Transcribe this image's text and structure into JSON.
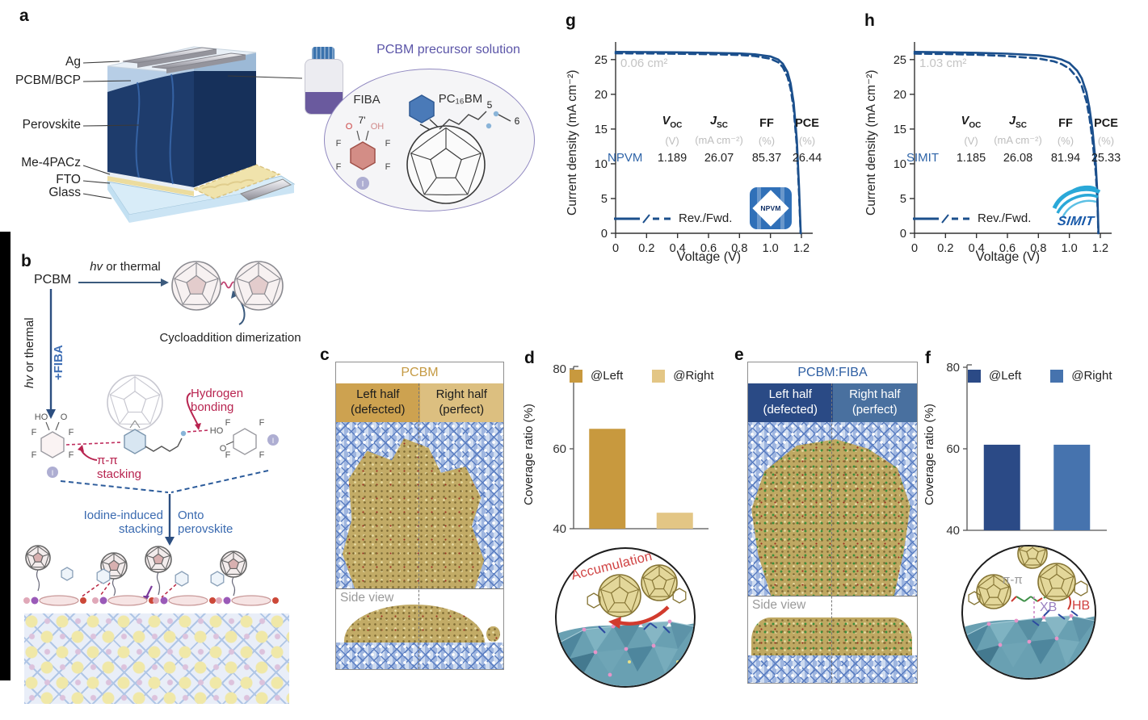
{
  "panels": {
    "a": "a",
    "b": "b",
    "c": "c",
    "d": "d",
    "e": "e",
    "f": "f",
    "g": "g",
    "h": "h"
  },
  "panel_a": {
    "layers": [
      "Ag",
      "PCBM/BCP",
      "Perovskite",
      "Me-4PACz",
      "FTO",
      "Glass"
    ],
    "solution_title": "PCBM precursor solution",
    "fiba": "FIBA",
    "pcbm": "PC₁₆BM",
    "n5": "5",
    "n6": "6",
    "n7": "7'",
    "oh": "OH",
    "o": "O",
    "f": "F",
    "i": "I"
  },
  "panel_b": {
    "pcbm": "PCBM",
    "hv": "hv",
    "hv_rest": " or thermal",
    "plus_fiba": "+FIBA",
    "cycloaddition": "Cycloaddition dimerization",
    "hydrogen_bonding": "Hydrogen bonding",
    "pi_stacking": "π-π stacking",
    "iodine_stacking": "Iodine-induced stacking",
    "onto_perovskite": "Onto perovskite",
    "ho": "HO",
    "o": "O",
    "f": "F",
    "i": "I"
  },
  "panel_c": {
    "title": "PCBM",
    "left_line1": "Left half",
    "left_line2": "(defected)",
    "right_line1": "Right half",
    "right_line2": "(perfect)",
    "side_view": "Side view"
  },
  "panel_e": {
    "title": "PCBM:FIBA",
    "left_line1": "Left half",
    "left_line2": "(defected)",
    "right_line1": "Right half",
    "right_line2": "(perfect)",
    "side_view": "Side view"
  },
  "insets": {
    "accumulation": "Accumulation",
    "pi_pi": "π-π",
    "xb": "XB",
    "hb": "HB"
  },
  "chart_data": [
    {
      "id": "d",
      "type": "bar",
      "panel": "d",
      "ylabel": "Coverage ratio (%)",
      "ylim": [
        40,
        80
      ],
      "yticks": [
        40,
        60,
        80
      ],
      "categories": [
        "@Left",
        "@Right"
      ],
      "values": [
        65,
        44
      ],
      "colors": [
        "#C8993E",
        "#E3C685"
      ],
      "legend_position": "top"
    },
    {
      "id": "f",
      "type": "bar",
      "panel": "f",
      "ylabel": "Coverage ratio (%)",
      "ylim": [
        40,
        80
      ],
      "yticks": [
        40,
        60,
        80
      ],
      "categories": [
        "@Left",
        "@Right"
      ],
      "values": [
        61,
        61
      ],
      "colors": [
        "#2B4A86",
        "#4673AE"
      ],
      "legend_position": "top"
    },
    {
      "id": "g",
      "type": "line",
      "panel": "g",
      "xlabel": "Voltage (V)",
      "ylabel": "Current density (mA cm⁻²)",
      "area_label": "0.06 cm²",
      "legend_label": "Rev./Fwd.",
      "device": "NPVM",
      "color": "#1B4F8C",
      "xlim": [
        0,
        1.2
      ],
      "ylim": [
        0,
        27.3
      ],
      "xticks": [
        "0",
        "0.2",
        "0.4",
        "0.6",
        "0.8",
        "1.0",
        "1.2"
      ],
      "yticks": [
        0,
        5,
        10,
        15,
        20,
        25
      ],
      "table_headers": {
        "voc_m": "V",
        "voc_s": "OC",
        "jsc_m": "J",
        "jsc_s": "SC",
        "ff": "FF",
        "pce": "PCE"
      },
      "table_units": {
        "v": "(V)",
        "j": "(mA cm⁻²)",
        "pct": "(%)"
      },
      "metrics": {
        "voc": "1.189",
        "jsc": "26.07",
        "ff": "85.37",
        "pce": "26.44"
      },
      "series": [
        {
          "name": "Rev.",
          "style": "solid",
          "points": [
            [
              0,
              26.1
            ],
            [
              0.2,
              26.08
            ],
            [
              0.4,
              26.04
            ],
            [
              0.6,
              25.98
            ],
            [
              0.8,
              25.88
            ],
            [
              0.9,
              25.75
            ],
            [
              1.0,
              25.45
            ],
            [
              1.05,
              25.0
            ],
            [
              1.08,
              24.4
            ],
            [
              1.11,
              23.2
            ],
            [
              1.13,
              21.6
            ],
            [
              1.15,
              18.8
            ],
            [
              1.17,
              13.5
            ],
            [
              1.185,
              6.5
            ],
            [
              1.192,
              2.0
            ],
            [
              1.196,
              0
            ]
          ]
        },
        {
          "name": "Fwd.",
          "style": "dashed",
          "points": [
            [
              0,
              25.9
            ],
            [
              0.2,
              25.88
            ],
            [
              0.4,
              25.84
            ],
            [
              0.6,
              25.78
            ],
            [
              0.8,
              25.66
            ],
            [
              0.9,
              25.5
            ],
            [
              1.0,
              25.12
            ],
            [
              1.05,
              24.6
            ],
            [
              1.08,
              23.9
            ],
            [
              1.11,
              22.5
            ],
            [
              1.13,
              20.8
            ],
            [
              1.15,
              17.9
            ],
            [
              1.17,
              12.6
            ],
            [
              1.185,
              5.6
            ],
            [
              1.192,
              1.5
            ],
            [
              1.195,
              0
            ]
          ]
        }
      ]
    },
    {
      "id": "h",
      "type": "line",
      "panel": "h",
      "xlabel": "Voltage (V)",
      "ylabel": "Current density (mA cm⁻²)",
      "area_label": "1.03 cm²",
      "legend_label": "Rev./Fwd.",
      "device": "SIMIT",
      "color": "#1B4F8C",
      "xlim": [
        0,
        1.2
      ],
      "ylim": [
        0,
        27.3
      ],
      "xticks": [
        "0",
        "0.2",
        "0.4",
        "0.6",
        "0.8",
        "1.0",
        "1.2"
      ],
      "yticks": [
        0,
        5,
        10,
        15,
        20,
        25
      ],
      "table_headers": {
        "voc_m": "V",
        "voc_s": "OC",
        "jsc_m": "J",
        "jsc_s": "SC",
        "ff": "FF",
        "pce": "PCE"
      },
      "table_units": {
        "v": "(V)",
        "j": "(mA cm⁻²)",
        "pct": "(%)"
      },
      "metrics": {
        "voc": "1.185",
        "jsc": "26.08",
        "ff": "81.94",
        "pce": "25.33"
      },
      "series": [
        {
          "name": "Rev.",
          "style": "solid",
          "points": [
            [
              0,
              26.1
            ],
            [
              0.2,
              26.05
            ],
            [
              0.4,
              25.98
            ],
            [
              0.6,
              25.85
            ],
            [
              0.8,
              25.6
            ],
            [
              0.9,
              25.3
            ],
            [
              0.95,
              25.0
            ],
            [
              1.0,
              24.5
            ],
            [
              1.05,
              23.4
            ],
            [
              1.08,
              22.3
            ],
            [
              1.11,
              20.3
            ],
            [
              1.13,
              18.0
            ],
            [
              1.15,
              14.8
            ],
            [
              1.17,
              10.0
            ],
            [
              1.18,
              6.0
            ],
            [
              1.185,
              2.5
            ],
            [
              1.188,
              0
            ]
          ]
        },
        {
          "name": "Fwd.",
          "style": "dashed",
          "points": [
            [
              0,
              25.85
            ],
            [
              0.2,
              25.8
            ],
            [
              0.4,
              25.7
            ],
            [
              0.6,
              25.5
            ],
            [
              0.8,
              25.15
            ],
            [
              0.9,
              24.75
            ],
            [
              0.95,
              24.35
            ],
            [
              1.0,
              23.7
            ],
            [
              1.05,
              22.4
            ],
            [
              1.08,
              21.2
            ],
            [
              1.11,
              19.0
            ],
            [
              1.13,
              16.6
            ],
            [
              1.15,
              13.3
            ],
            [
              1.17,
              8.8
            ],
            [
              1.18,
              5.0
            ],
            [
              1.185,
              2.0
            ],
            [
              1.187,
              0
            ]
          ]
        }
      ]
    }
  ]
}
